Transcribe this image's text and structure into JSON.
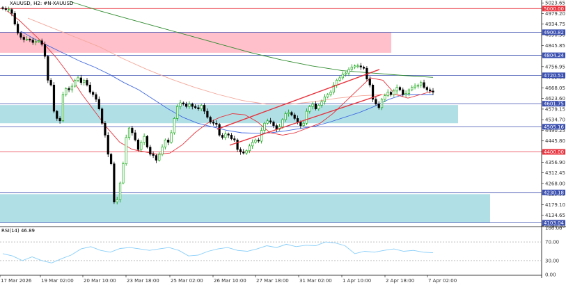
{
  "header": {
    "symbol_label": "XAUUSD, H2:  #N-XAUUSD"
  },
  "indicator": {
    "label": "RSI(14) 46.89",
    "current": 46.89,
    "levels": [
      "100.00",
      "70.00",
      "30.00",
      "0.00"
    ]
  },
  "colors": {
    "bull": "#00a000",
    "bear": "#000000",
    "ma_red": "#e8323c",
    "ma_blue": "#4169e1",
    "ma_green": "#2e8b2e",
    "ma_salmon": "#f4a79a",
    "supply_zone": "#ffc0cb",
    "demand_zone": "#b0e0e6",
    "channel": "#e8323c",
    "rsi": "#87cefa",
    "level_line": "#3a4fb0"
  },
  "chart_data": {
    "type": "candlestick",
    "symbol": "XAUUSD",
    "timeframe": "H2",
    "ylim": [
      4090,
      5030
    ],
    "x_labels": [
      "17 Mar 2026",
      "19 Mar 02:00",
      "20 Mar 10:00",
      "23 Mar 18:00",
      "25 Mar 02:00",
      "26 Mar 10:00",
      "27 Mar 18:00",
      "31 Mar 02:00",
      "1 Apr 10:00",
      "2 Apr 18:00",
      "7 Apr 02:00"
    ],
    "y_ticks": [
      "5023.65",
      "4979.20",
      "4934.75",
      "4890.30",
      "4845.85",
      "4801.40",
      "4756.95",
      "4712.50",
      "4668.05",
      "4623.60",
      "4579.15",
      "4534.70",
      "4490.25",
      "4445.80",
      "4401.35",
      "4356.90",
      "4312.45",
      "4268.00",
      "4223.55",
      "4179.10",
      "4134.65",
      "4090.20"
    ],
    "levels": [
      {
        "price": 5000,
        "label": "5000.00",
        "color": "#e8323c"
      },
      {
        "price": 4900.82,
        "label": "4900.82",
        "color": "#3a4fb0"
      },
      {
        "price": 4804.24,
        "label": "4804.24",
        "color": "#3a4fb0"
      },
      {
        "price": 4720.51,
        "label": "4720.51",
        "color": "#3a4fb0"
      },
      {
        "price": 4601.75,
        "label": "4601.75",
        "color": "#3a4fb0"
      },
      {
        "price": 4505.16,
        "label": "4505.16",
        "color": "#3a4fb0"
      },
      {
        "price": 4400,
        "label": "4400.00",
        "color": "#e8323c"
      },
      {
        "price": 4230.18,
        "label": "4230.18",
        "color": "#3a4fb0"
      },
      {
        "price": 4103.04,
        "label": "4103.04",
        "color": "#3a4fb0"
      }
    ],
    "zones": [
      {
        "kind": "supply",
        "from": 4815,
        "to": 4900
      },
      {
        "kind": "demand",
        "from": 4520,
        "to": 4596
      },
      {
        "kind": "demand",
        "from": 4105,
        "to": 4223
      }
    ],
    "channel": {
      "lower": [
        [
          4510,
          4650
        ],
        [
          4432,
          4725
        ]
      ],
      "upper": [
        [
          4515,
          4795
        ],
        [
          4573,
          4715
        ]
      ]
    },
    "closes": [
      5000,
      4996,
      4996,
      4980,
      4935,
      4897,
      4880,
      4870,
      4872,
      4868,
      4858,
      4862,
      4865,
      4850,
      4800,
      4700,
      4680,
      4570,
      4540,
      4530,
      4640,
      4665,
      4660,
      4675,
      4700,
      4710,
      4690,
      4700,
      4680,
      4650,
      4640,
      4620,
      4580,
      4520,
      4470,
      4390,
      4350,
      4190,
      4200,
      4270,
      4350,
      4460,
      4500,
      4480,
      4450,
      4410,
      4440,
      4465,
      4420,
      4390,
      4385,
      4365,
      4390,
      4420,
      4450,
      4440,
      4480,
      4540,
      4590,
      4605,
      4600,
      4590,
      4600,
      4590,
      4585,
      4580,
      4595,
      4570,
      4545,
      4525,
      4520,
      4515,
      4470,
      4460,
      4475,
      4470,
      4455,
      4450,
      4410,
      4400,
      4395,
      4405,
      4425,
      4440,
      4450,
      4445,
      4490,
      4520,
      4530,
      4525,
      4510,
      4495,
      4505,
      4535,
      4560,
      4565,
      4555,
      4540,
      4525,
      4510,
      4520,
      4570,
      4590,
      4600,
      4580,
      4595,
      4610,
      4630,
      4640,
      4650,
      4680,
      4700,
      4710,
      4725,
      4730,
      4745,
      4755,
      4760,
      4760,
      4755,
      4750,
      4705,
      4680,
      4620,
      4600,
      4585,
      4620,
      4635,
      4650,
      4640,
      4655,
      4670,
      4660,
      4640,
      4645,
      4660,
      4670,
      4675,
      4680,
      4690,
      4670,
      4660,
      4655,
      4650
    ],
    "ma_fast": [
      4990,
      4950,
      4900,
      4850,
      4790,
      4720,
      4640,
      4570,
      4500,
      4440,
      4410,
      4400,
      4390,
      4395,
      4430,
      4480,
      4520,
      4545,
      4560,
      4555,
      4525,
      4480,
      4470,
      4480,
      4500,
      4520,
      4560,
      4610,
      4660,
      4710,
      4700,
      4640,
      4625,
      4640,
      4655
    ],
    "ma_blue": [
      4905,
      4870,
      4840,
      4810,
      4780,
      4755,
      4725,
      4690,
      4660,
      4620,
      4580,
      4545,
      4520,
      4505,
      4490,
      4480,
      4478,
      4480,
      4488,
      4498,
      4508,
      4525,
      4545,
      4565,
      4590,
      4620,
      4640,
      4640,
      4640
    ],
    "ma_green": [
      5030,
      4990,
      4955,
      4920,
      4885,
      4850,
      4815,
      4785,
      4760,
      4740,
      4730,
      4720,
      4712
    ],
    "ma_salmon": [
      4960,
      4920,
      4880,
      4840,
      4790,
      4745,
      4705,
      4670,
      4640,
      4615,
      4600,
      4600,
      4610,
      4625,
      4635,
      4640,
      4640,
      4640
    ],
    "rsi": [
      45,
      40,
      30,
      38,
      30,
      25,
      34,
      42,
      55,
      60,
      52,
      48,
      56,
      58,
      55,
      52,
      55,
      58,
      52,
      40,
      42,
      50,
      55,
      58,
      52,
      50,
      55,
      62,
      58,
      65,
      60,
      63,
      62,
      70,
      68,
      62,
      45,
      50,
      48,
      52,
      55,
      50,
      52,
      48,
      46.89
    ]
  }
}
